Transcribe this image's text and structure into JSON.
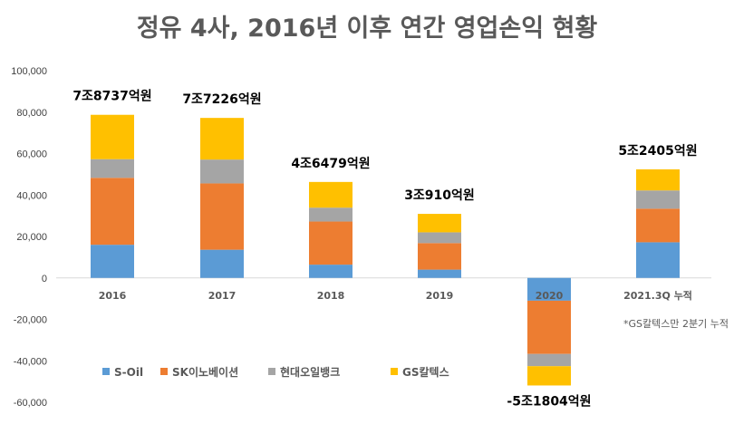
{
  "chart_data": {
    "type": "bar",
    "stacked": true,
    "title": "정유 4사, 2016년 이후 연간 영업손익 현황",
    "categories": [
      "2016",
      "2017",
      "2018",
      "2019",
      "2020",
      "2021.3Q 누적"
    ],
    "series": [
      {
        "name": "S-Oil",
        "color": "#5B9BD5",
        "values": [
          16000,
          13600,
          6400,
          4000,
          -11000,
          17200
        ]
      },
      {
        "name": "SK이노베이션",
        "color": "#ED7D31",
        "values": [
          32300,
          32000,
          20800,
          12800,
          -25700,
          16200
        ]
      },
      {
        "name": "현대오일뱅크",
        "color": "#A5A5A5",
        "values": [
          9000,
          11500,
          6700,
          5200,
          -5900,
          8800
        ]
      },
      {
        "name": "GS칼텍스",
        "color": "#FFC000",
        "values": [
          21400,
          20100,
          12400,
          8900,
          -9300,
          10200
        ]
      }
    ],
    "totals": [
      "7조8737억원",
      "7조7226억원",
      "4조6479억원",
      "3조910억원",
      "-5조1804억원",
      "5조2405억원"
    ],
    "ylim": [
      -60000,
      100000
    ],
    "yticks": [
      -60000,
      -40000,
      -20000,
      0,
      20000,
      40000,
      60000,
      80000,
      100000
    ],
    "ytick_labels": [
      "-60,000",
      "-40,000",
      "-20,000",
      "0",
      "20,000",
      "40,000",
      "60,000",
      "80,000",
      "100,000"
    ],
    "annotation": "*GS칼텍스만 2분기 누적",
    "legend_position": "bottom-left",
    "grid": false
  }
}
